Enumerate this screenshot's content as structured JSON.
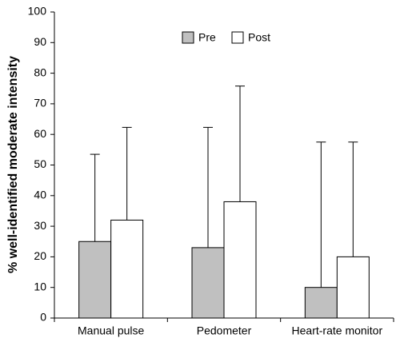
{
  "chart_data": {
    "type": "bar",
    "ylabel": "% well-identified moderate intensity",
    "categories": [
      "Manual pulse",
      "Pedometer",
      "Heart-rate monitor"
    ],
    "series": [
      {
        "name": "Pre",
        "color": "#c0c0c0",
        "values": [
          25,
          23,
          10
        ],
        "errors": [
          28.5,
          39.3,
          47.5
        ]
      },
      {
        "name": "Post",
        "color": "#ffffff",
        "values": [
          32,
          38,
          20
        ],
        "errors": [
          30.3,
          37.8,
          37.5
        ]
      }
    ],
    "ylim": [
      0,
      100
    ],
    "yticks": [
      0,
      10,
      20,
      30,
      40,
      50,
      60,
      70,
      80,
      90,
      100
    ],
    "grid": false,
    "legend": "top"
  }
}
